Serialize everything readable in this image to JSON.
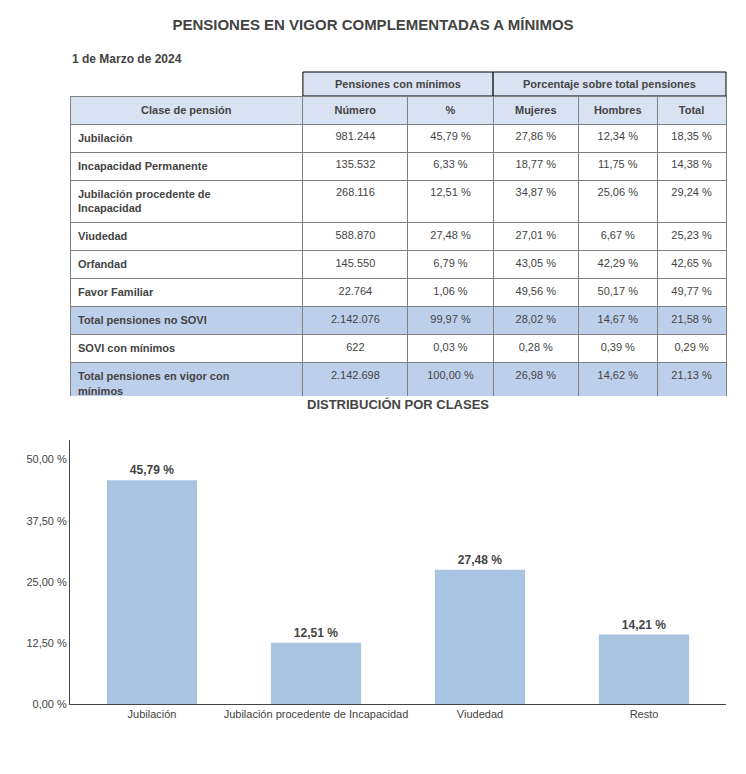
{
  "chart_data": [
    {
      "type": "table",
      "title": "PENSIONES EN VIGOR COMPLEMENTADAS A MÍNIMOS",
      "subtitle": "1 de Marzo de 2024",
      "header": {
        "color": "#d9e2f3",
        "columns": [
          "Clase de pensión",
          {
            "group": "Pensiones con mínimos",
            "columns": [
              "Número",
              "%"
            ]
          },
          {
            "group": "Porcentaje sobre total pensiones",
            "columns": [
              "Mujeres",
              "Hombres",
              "Total"
            ]
          }
        ]
      },
      "rows": [
        [
          "Jubilación",
          "981.244",
          "45,79 %",
          "27,86 %",
          "12,34 %",
          "18,35 %"
        ],
        [
          "Incapacidad Permanente",
          "135.532",
          "6,33 %",
          "18,77 %",
          "11,75 %",
          "14,38 %"
        ],
        [
          "Jubilación procedente de\nIncapacidad",
          "268.116",
          "12,51 %",
          "34,87 %",
          "25,06 %",
          "29,24 %"
        ],
        [
          "Viudedad",
          "588.870",
          "27,48 %",
          "27,01 %",
          "6,67 %",
          "25,23 %"
        ],
        [
          "Orfandad",
          "145.550",
          "6,79 %",
          "43,05 %",
          "42,29 %",
          "42,65 %"
        ],
        [
          "Favor Familiar",
          "22.764",
          "1,06 %",
          "49,56 %",
          "50,17 %",
          "49,77 %"
        ],
        [
          "Total pensiones no SOVI",
          "2.142.076",
          "99,97 %",
          "28,02 %",
          "14,67 %",
          "21,58 %"
        ],
        [
          "SOVI con mínimos",
          "622",
          "0,03 %",
          "0,28 %",
          "0,39 %",
          "0,29 %"
        ],
        [
          "Total pensiones en vigor con\nmínimos",
          "2.142.698",
          "100,00 %",
          "26,98 %",
          "14,62 %",
          "21,13 %"
        ]
      ],
      "colors": [
        "#ffffff",
        "#ffffff",
        "#ffffff",
        "#ffffff",
        "#ffffff",
        "#ffffff",
        "#bdd0eb",
        "#ffffff",
        "#bdd0eb"
      ]
    },
    {
      "type": "bar",
      "title": "DISTRIBUCIÓN POR CLASES",
      "categories": [
        "Jubilación",
        "Jubilación procedente de Incapacidad",
        "Viudedad",
        "Resto"
      ],
      "values": [
        45.79,
        12.51,
        27.48,
        14.21
      ],
      "value_labels": [
        "45,79 %",
        "12,51 %",
        "27,48 %",
        "14,21 %"
      ],
      "data_labels": true,
      "color": "#a8c4e0",
      "ylim": [
        0,
        54
      ],
      "yticks": [
        {
          "value": 0,
          "label": "0,00 %"
        },
        {
          "value": 12.5,
          "label": "12,50 %"
        },
        {
          "value": 25.0,
          "label": "25,00 %"
        },
        {
          "value": 37.5,
          "label": "37,50 %"
        },
        {
          "value": 50.0,
          "label": "50,00 %"
        }
      ],
      "grid": false
    }
  ]
}
